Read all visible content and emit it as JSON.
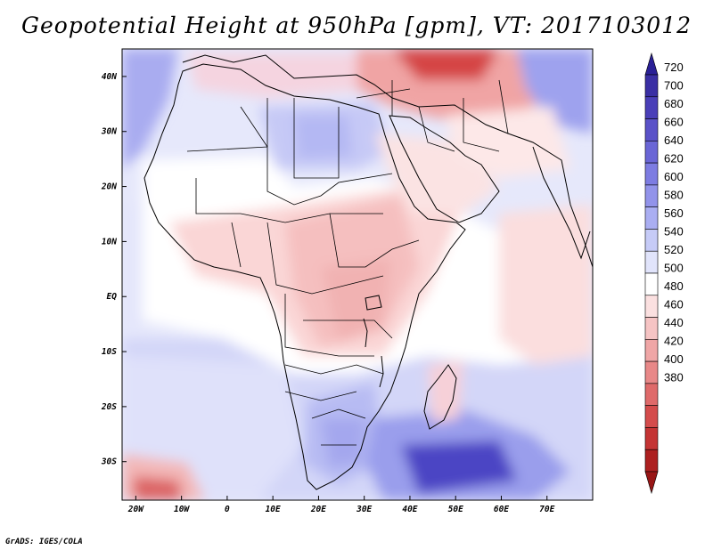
{
  "title": "Geopotential Height at 950hPa [gpm], VT: 2017103012",
  "footer": "GrADS: IGES/COLA",
  "map": {
    "lon_range": [
      -23,
      80
    ],
    "lat_range": [
      -37,
      45
    ],
    "lon_ticks": [
      {
        "value": -20,
        "label": "20W"
      },
      {
        "value": -10,
        "label": "10W"
      },
      {
        "value": 0,
        "label": "0"
      },
      {
        "value": 10,
        "label": "10E"
      },
      {
        "value": 20,
        "label": "20E"
      },
      {
        "value": 30,
        "label": "30E"
      },
      {
        "value": 40,
        "label": "40E"
      },
      {
        "value": 50,
        "label": "50E"
      },
      {
        "value": 60,
        "label": "60E"
      },
      {
        "value": 70,
        "label": "70E"
      }
    ],
    "lat_ticks": [
      {
        "value": 40,
        "label": "40N"
      },
      {
        "value": 30,
        "label": "30N"
      },
      {
        "value": 20,
        "label": "20N"
      },
      {
        "value": 10,
        "label": "10N"
      },
      {
        "value": 0,
        "label": "EQ"
      },
      {
        "value": -10,
        "label": "10S"
      },
      {
        "value": -20,
        "label": "20S"
      },
      {
        "value": -30,
        "label": "30S"
      }
    ]
  },
  "colorbar": {
    "levels": [
      "720",
      "700",
      "680",
      "660",
      "640",
      "620",
      "600",
      "580",
      "560",
      "540",
      "520",
      "500",
      "480",
      "460",
      "440",
      "420",
      "400",
      "380"
    ],
    "colors": [
      "#3a2fa4",
      "#4a3fb8",
      "#5a52c8",
      "#6a66d6",
      "#7d7ce2",
      "#9293ea",
      "#aaaef2",
      "#c6cbf7",
      "#e1e4fb",
      "#ffffff",
      "#fbe0e0",
      "#f6c4c4",
      "#efa6a6",
      "#e88888",
      "#df6a6a",
      "#d44c4c",
      "#c43434",
      "#ad2020"
    ],
    "top_arrow_color": "#2a2096",
    "bottom_arrow_color": "#981616"
  }
}
